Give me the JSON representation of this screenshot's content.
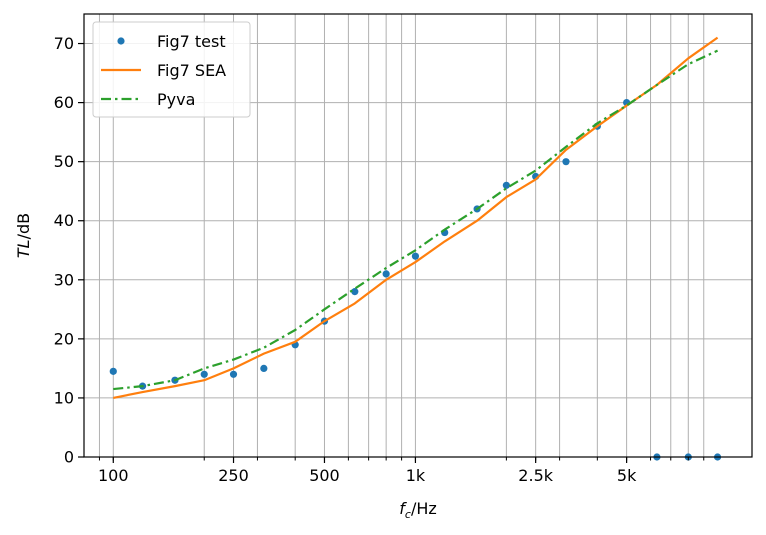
{
  "chart_data": {
    "type": "line",
    "xscale": "log",
    "xlim": [
      80,
      13000
    ],
    "ylim": [
      0,
      75
    ],
    "grid": true,
    "legend_position": "top-left",
    "xlabel": {
      "main": "f",
      "sub": "c",
      "unit": "/Hz"
    },
    "ylabel": {
      "main": "TL",
      "unit": "/dB"
    },
    "xticks": [
      {
        "value": 100,
        "label": "100"
      },
      {
        "value": 250,
        "label": "250"
      },
      {
        "value": 500,
        "label": "500"
      },
      {
        "value": 1000,
        "label": "1k"
      },
      {
        "value": 2500,
        "label": "2.5k"
      },
      {
        "value": 5000,
        "label": "5k"
      }
    ],
    "yticks": [
      0,
      10,
      20,
      30,
      40,
      50,
      60,
      70
    ],
    "xgrid_values": [
      90,
      100,
      200,
      250,
      300,
      400,
      500,
      600,
      700,
      800,
      900,
      1000,
      2000,
      2500,
      3000,
      4000,
      5000,
      6000,
      7000,
      8000,
      9000
    ],
    "series": [
      {
        "name": "Fig7 test",
        "style": "markers",
        "color": "#1f77b4",
        "x": [
          100,
          125,
          160,
          200,
          250,
          315,
          400,
          500,
          630,
          800,
          1000,
          1250,
          1600,
          2000,
          2500,
          3150,
          4000,
          5000,
          6300,
          8000,
          10000
        ],
        "y": [
          14.5,
          12,
          13,
          14,
          14,
          15,
          19,
          23,
          28,
          31,
          34,
          38,
          42,
          46,
          47.5,
          50,
          56,
          60,
          0,
          0,
          0
        ]
      },
      {
        "name": "Fig7 SEA",
        "style": "solid",
        "color": "#ff7f0e",
        "x": [
          100,
          125,
          160,
          200,
          250,
          315,
          400,
          500,
          630,
          800,
          1000,
          1250,
          1600,
          2000,
          2500,
          3150,
          4000,
          5000,
          6300,
          8000,
          10000
        ],
        "y": [
          10,
          11,
          12,
          13,
          15,
          17.5,
          19.5,
          23,
          26,
          30,
          33,
          36.5,
          40,
          44,
          47,
          52,
          56,
          59.5,
          63,
          67.5,
          71
        ]
      },
      {
        "name": "Pyva",
        "style": "dashdot",
        "color": "#2ca02c",
        "x": [
          100,
          125,
          160,
          200,
          250,
          315,
          400,
          500,
          630,
          800,
          1000,
          1250,
          1600,
          2000,
          2500,
          3150,
          4000,
          5000,
          6300,
          8000,
          10000
        ],
        "y": [
          11.5,
          12,
          13,
          15,
          16.5,
          18.5,
          21.5,
          25,
          28.5,
          32,
          35,
          38.5,
          42,
          45.5,
          48.5,
          52.5,
          56.5,
          59.5,
          63,
          66.5,
          68.8
        ]
      }
    ]
  }
}
